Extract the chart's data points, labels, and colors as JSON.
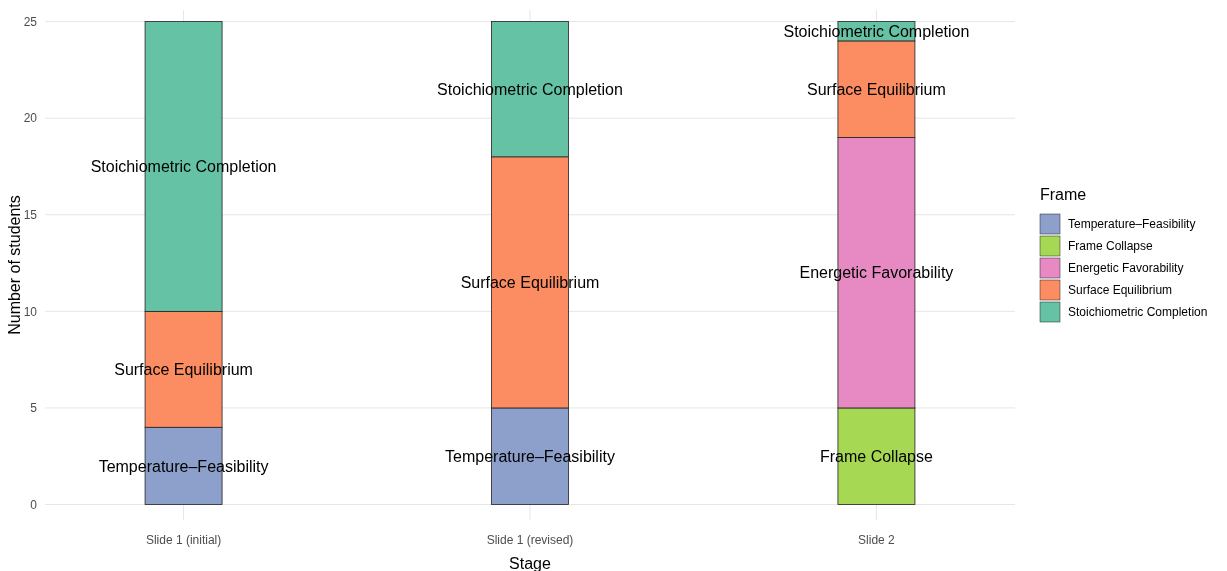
{
  "chart_data": {
    "type": "bar",
    "stacked": true,
    "xlabel": "Stage",
    "ylabel": "Number of students",
    "legend_title": "Frame",
    "legend": "right",
    "grid": true,
    "categories": [
      "Slide 1 (initial)",
      "Slide 1 (revised)",
      "Slide 2"
    ],
    "ylim": [
      -0.8,
      25.6
    ],
    "yticks": [
      0,
      5,
      10,
      15,
      20,
      25
    ],
    "series": [
      {
        "name": "Temperature–Feasibility",
        "color": "#8da0cb",
        "values": [
          4,
          5,
          null
        ]
      },
      {
        "name": "Frame Collapse",
        "color": "#a6d854",
        "values": [
          null,
          null,
          5
        ]
      },
      {
        "name": "Energetic Favorability",
        "color": "#e78ac3",
        "values": [
          null,
          null,
          14
        ]
      },
      {
        "name": "Surface Equilibrium",
        "color": "#fc8d62",
        "values": [
          6,
          13,
          5
        ]
      },
      {
        "name": "Stoichiometric Completion",
        "color": "#66c2a5",
        "values": [
          15,
          7,
          1
        ]
      }
    ]
  }
}
